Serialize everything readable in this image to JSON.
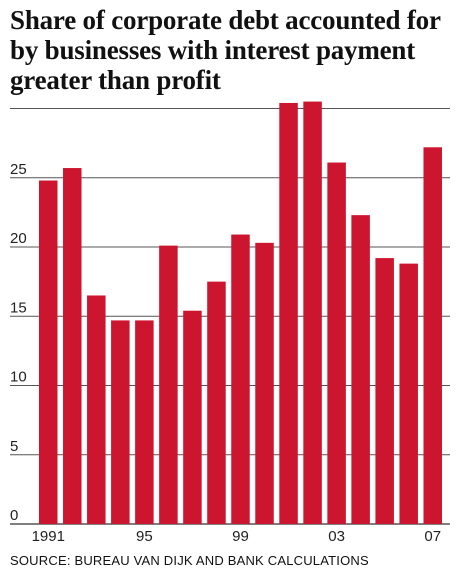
{
  "title": "Share of corporate debt accounted for by businesses with interest payment greater than profit",
  "source": "SOURCE: BUREAU VAN DIJK AND BANK CALCULATIONS",
  "colors": {
    "bar": "#cc1630",
    "grid": "#555555",
    "text": "#111111"
  },
  "chart_data": {
    "type": "bar",
    "title": "Share of corporate debt accounted for by businesses with interest payment greater than profit",
    "xlabel": "",
    "ylabel": "",
    "categories": [
      "1991",
      "1992",
      "1993",
      "1994",
      "1995",
      "1996",
      "1997",
      "1998",
      "1999",
      "2000",
      "2001",
      "2002",
      "2003",
      "2004",
      "2005",
      "2006",
      "2007"
    ],
    "values": [
      24.8,
      25.7,
      16.5,
      14.7,
      14.7,
      20.1,
      15.4,
      17.5,
      20.9,
      20.3,
      30.4,
      30.5,
      26.1,
      22.3,
      19.2,
      18.8,
      27.2
    ],
    "x_tick_labels": [
      {
        "index": 0,
        "label": "1991"
      },
      {
        "index": 4,
        "label": "95"
      },
      {
        "index": 8,
        "label": "99"
      },
      {
        "index": 12,
        "label": "03"
      },
      {
        "index": 16,
        "label": "07"
      }
    ],
    "y_ticks": [
      0,
      5,
      10,
      15,
      20,
      25
    ],
    "ylim": [
      0,
      30
    ],
    "grid": true,
    "legend": "none"
  }
}
